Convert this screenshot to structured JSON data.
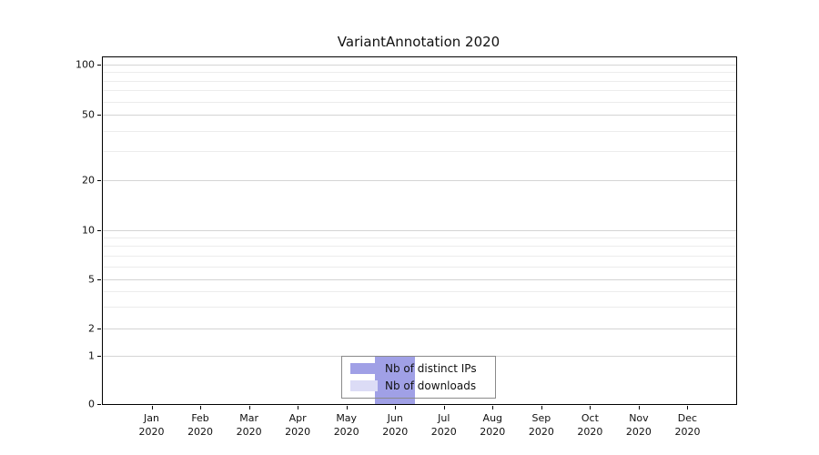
{
  "title": "VariantAnnotation 2020",
  "chart_data": {
    "type": "bar",
    "title": "VariantAnnotation 2020",
    "x_categories": [
      "Jan 2020",
      "Feb 2020",
      "Mar 2020",
      "Apr 2020",
      "May 2020",
      "Jun 2020",
      "Jul 2020",
      "Aug 2020",
      "Sep 2020",
      "Oct 2020",
      "Nov 2020",
      "Dec 2020"
    ],
    "series": [
      {
        "name": "Nb of distinct IPs",
        "color": "#a0a0e6",
        "values": [
          0,
          0,
          0,
          0,
          0,
          1,
          0,
          0,
          0,
          0,
          0,
          0
        ]
      },
      {
        "name": "Nb of downloads",
        "color": "#dcdcf6",
        "values": [
          0,
          0,
          0,
          0,
          0,
          1,
          0,
          0,
          0,
          0,
          0,
          0
        ]
      }
    ],
    "yscale": "log-like",
    "y_major_ticks": [
      0,
      1,
      2,
      5,
      10,
      20,
      50,
      100
    ],
    "y_minor_ticks": [
      3,
      4,
      6,
      7,
      8,
      9,
      30,
      40,
      60,
      70,
      80,
      90
    ],
    "ylim": [
      0,
      100
    ],
    "grid": "horizontal",
    "legend_position": "bottom-center"
  }
}
